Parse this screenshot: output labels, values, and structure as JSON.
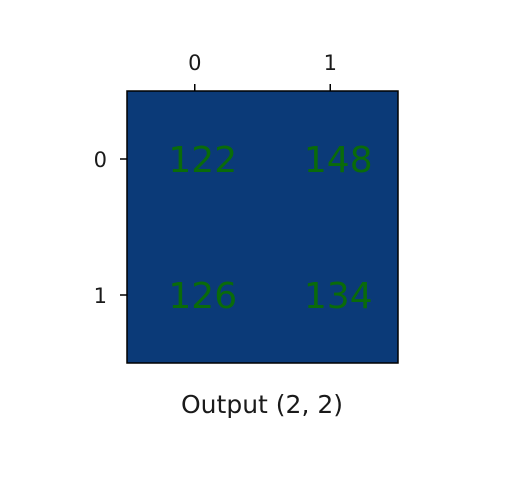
{
  "chart_data": {
    "type": "heatmap",
    "title": "Output (2, 2)",
    "x_ticks": [
      "0",
      "1"
    ],
    "y_ticks": [
      "0",
      "1"
    ],
    "values": [
      [
        122,
        148
      ],
      [
        126,
        134
      ]
    ],
    "cell_labels": [
      [
        "122",
        "148"
      ],
      [
        "126",
        "134"
      ]
    ],
    "colors": {
      "cell_fill": "#0b3a78",
      "cell_text": "#0a6b0a",
      "frame": "#000000",
      "tick_text": "#1a1a1a",
      "background": "#ffffff"
    }
  }
}
